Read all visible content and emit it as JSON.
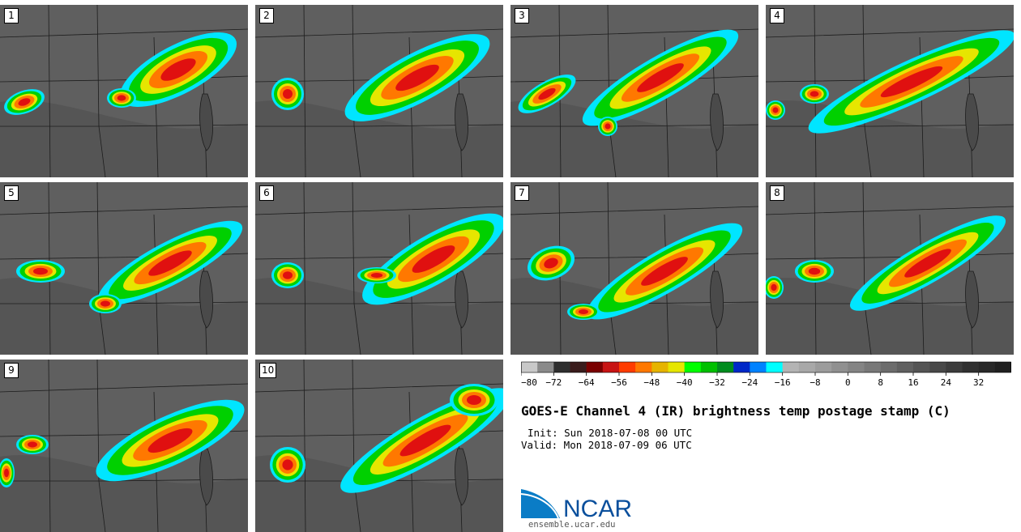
{
  "panels": [
    {
      "label": "1"
    },
    {
      "label": "2"
    },
    {
      "label": "3"
    },
    {
      "label": "4"
    },
    {
      "label": "5"
    },
    {
      "label": "6"
    },
    {
      "label": "7"
    },
    {
      "label": "8"
    },
    {
      "label": "9"
    },
    {
      "label": "10"
    }
  ],
  "colorbar": {
    "colors": [
      "#c8c8c8",
      "#8a8a8a",
      "#2e2e2e",
      "#3a1c1c",
      "#7a0000",
      "#c81414",
      "#ff3c00",
      "#ff7800",
      "#e6b400",
      "#e6e600",
      "#00ff00",
      "#00c000",
      "#008c1e",
      "#0028c8",
      "#0082ff",
      "#00ffff",
      "#b4b4b4",
      "#a8a8a8",
      "#9c9c9c",
      "#909090",
      "#848484",
      "#787878",
      "#6c6c6c",
      "#606060",
      "#545454",
      "#484848",
      "#3c3c3c",
      "#303030",
      "#282828",
      "#202020"
    ],
    "ticks": [
      "−80",
      "−72",
      "−64",
      "−56",
      "−48",
      "−40",
      "−32",
      "−24",
      "−16",
      "−8",
      "0",
      "8",
      "16",
      "24",
      "32"
    ]
  },
  "title": "GOES-E Channel 4 (IR) brightness temp postage stamp (C)",
  "init": "Init: Sun 2018-07-08 00 UTC",
  "valid": "Valid: Mon 2018-07-09 06 UTC",
  "logo": {
    "text": "NCAR",
    "url": "ensemble.ucar.edu",
    "color": "#0a4f9c"
  }
}
